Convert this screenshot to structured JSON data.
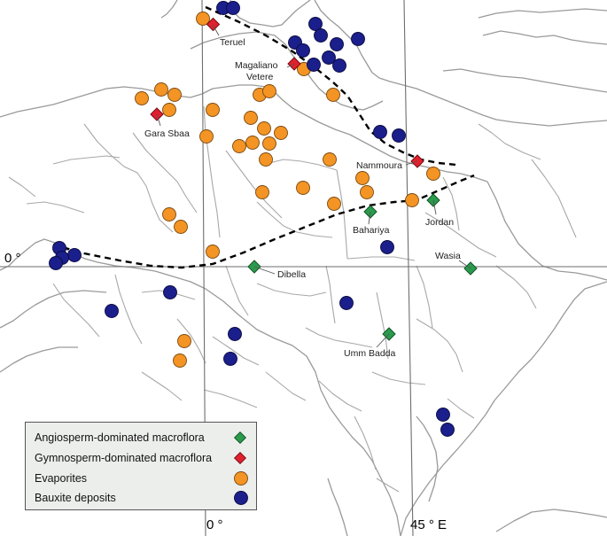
{
  "axes": {
    "equator_label": "0 °",
    "meridian0_label": "0 °",
    "meridian45_label": "45 ° E"
  },
  "legend": [
    {
      "label": "Angiosperm-dominated macroflora",
      "symbol": "green-diamond",
      "color": "#2a9a4c"
    },
    {
      "label": "Gymnosperm-dominated macroflora",
      "symbol": "red-diamond",
      "color": "#e0202e"
    },
    {
      "label": "Evaporites",
      "symbol": "orange-circle",
      "color": "#f39424"
    },
    {
      "label": "Bauxite deposits",
      "symbol": "blue-circle",
      "color": "#1b1f8c"
    }
  ],
  "sites": {
    "teruel": "Teruel",
    "magaliano_line1": "Magaliano",
    "magaliano_line2": "Vetere",
    "gara_sbaa": "Gara Sbaa",
    "nammoura": "Nammoura",
    "jordan": "Jordan",
    "bahariya": "Bahariya",
    "dibella": "Dibella",
    "wasia": "Wasia",
    "umm_badda": "Umm Badda"
  }
}
